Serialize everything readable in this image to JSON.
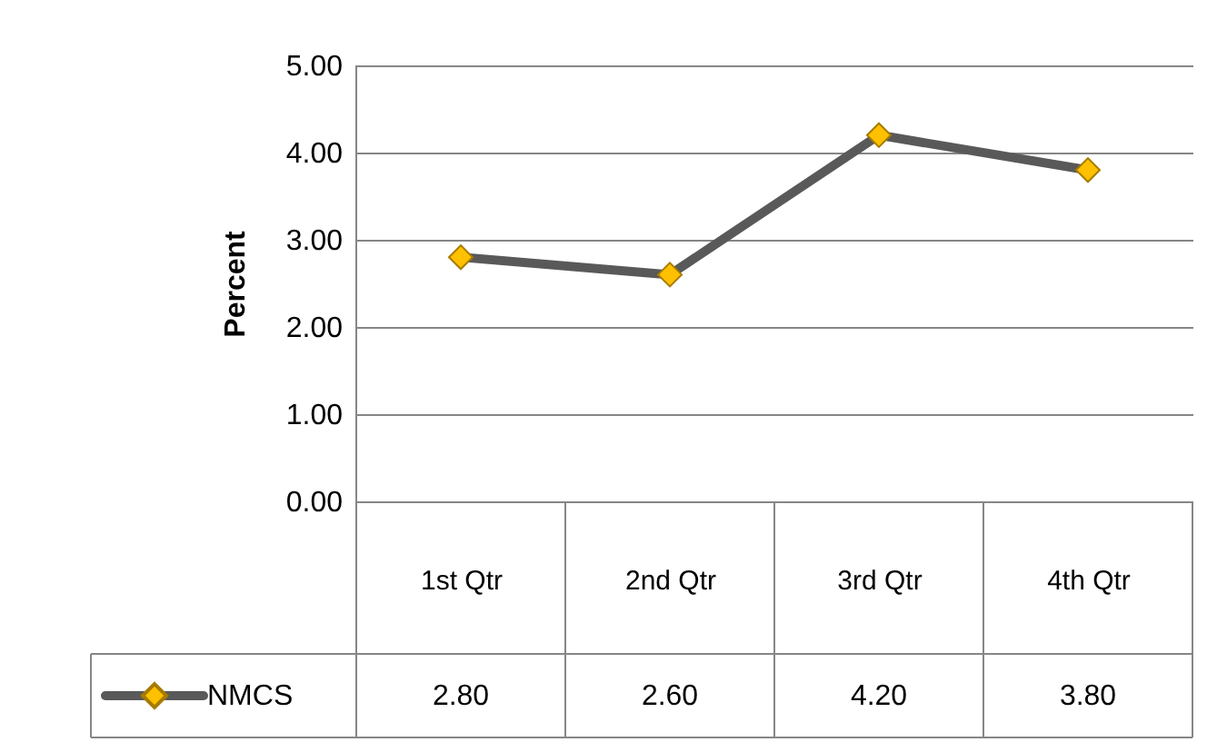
{
  "chart_data": {
    "type": "line",
    "ylabel": "Percent",
    "categories": [
      "1st Qtr",
      "2nd Qtr",
      "3rd Qtr",
      "4th Qtr"
    ],
    "series": [
      {
        "name": "NMCS",
        "color": "#595959",
        "values": [
          2.8,
          2.6,
          4.2,
          3.8
        ],
        "value_labels": [
          "2.80",
          "2.60",
          "4.20",
          "3.80"
        ]
      }
    ],
    "ylim": [
      0,
      5
    ],
    "yticks": [
      {
        "value": 0,
        "label": "0.00"
      },
      {
        "value": 1,
        "label": "1.00"
      },
      {
        "value": 2,
        "label": "2.00"
      },
      {
        "value": 3,
        "label": "3.00"
      },
      {
        "value": 4,
        "label": "4.00"
      },
      {
        "value": 5,
        "label": "5.00"
      }
    ],
    "grid": "y",
    "legend": "bottom",
    "marker": "diamond",
    "line_style": "solid"
  }
}
